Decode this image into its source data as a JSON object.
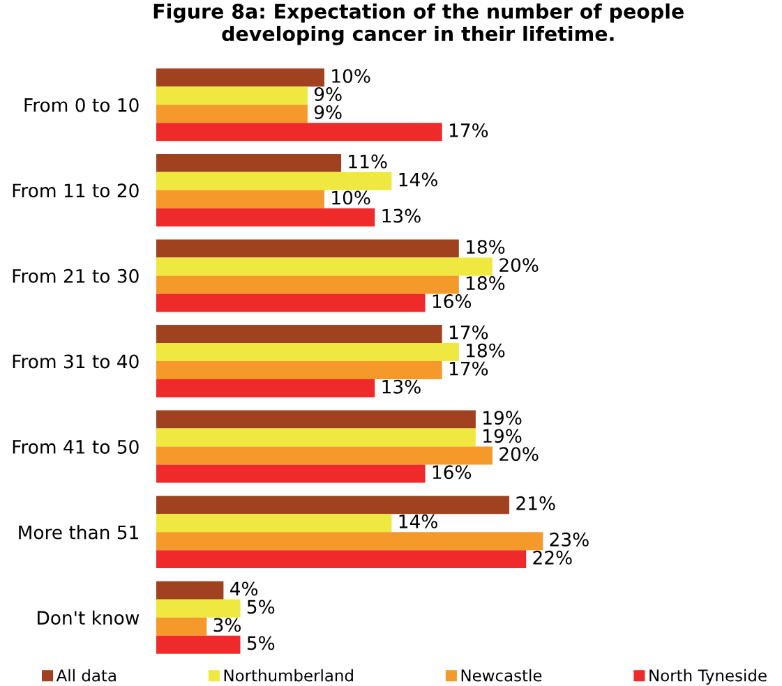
{
  "chart_data": {
    "type": "bar",
    "orientation": "horizontal",
    "title": "Figure 8a: Expectation of the number of people\ndeveloping cancer in their lifetime.",
    "categories": [
      "From 0 to 10",
      "From 11 to 20",
      "From 21 to 30",
      "From 31 to 40",
      "From 41 to 50",
      "More than 51",
      "Don't know"
    ],
    "series": [
      {
        "name": "All data",
        "color": "#a0421f",
        "values": [
          10,
          11,
          18,
          17,
          19,
          21,
          4
        ],
        "value_labels": [
          "10%",
          "11%",
          "18%",
          "17%",
          "19%",
          "21%",
          "4%"
        ]
      },
      {
        "name": "Northumberland",
        "color": "#efe83e",
        "values": [
          9,
          14,
          20,
          18,
          19,
          14,
          5
        ],
        "value_labels": [
          "9%",
          "14%",
          "20%",
          "18%",
          "19%",
          "14%",
          "5%"
        ]
      },
      {
        "name": "Newcastle",
        "color": "#f59a2a",
        "values": [
          9,
          10,
          18,
          17,
          20,
          23,
          3
        ],
        "value_labels": [
          "9%",
          "10%",
          "18%",
          "17%",
          "20%",
          "23%",
          "3%"
        ]
      },
      {
        "name": "North Tyneside",
        "color": "#ee2a2a",
        "values": [
          17,
          13,
          16,
          13,
          16,
          22,
          5
        ],
        "value_labels": [
          "17%",
          "13%",
          "16%",
          "13%",
          "16%",
          "22%",
          "5%"
        ]
      }
    ],
    "tick_labels": "y",
    "grid": false,
    "legend": "bottom"
  }
}
